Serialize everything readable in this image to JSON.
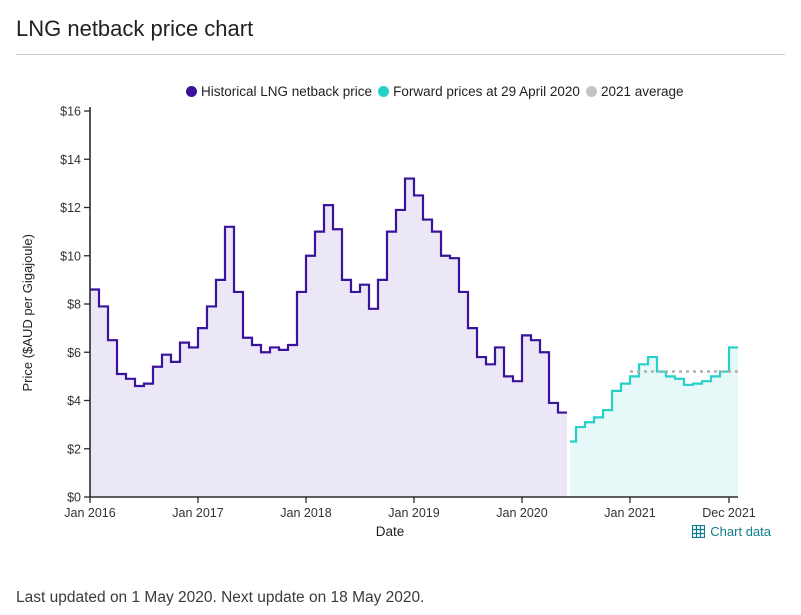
{
  "header": {
    "title": "LNG netback price chart"
  },
  "legend": [
    {
      "label": "Historical LNG netback price",
      "color": "#3b129b"
    },
    {
      "label": "Forward prices at 29 April 2020",
      "color": "#25d0c6"
    },
    {
      "label": "2021 average",
      "color": "#c4c4c4"
    }
  ],
  "chart_data": {
    "type": "line",
    "step": true,
    "title": "LNG netback price chart",
    "xlabel": "Date",
    "ylabel": "Price ($AUD per Gigajoule)",
    "ylim": [
      0,
      16
    ],
    "x_domain_months": [
      0,
      72
    ],
    "x_unit": "months since Jan 2016, monthly step values",
    "grid": false,
    "legend_position": "top",
    "y_ticks": [
      {
        "value": 0,
        "label": "$0"
      },
      {
        "value": 2,
        "label": "$2"
      },
      {
        "value": 4,
        "label": "$4"
      },
      {
        "value": 6,
        "label": "$6"
      },
      {
        "value": 8,
        "label": "$8"
      },
      {
        "value": 10,
        "label": "$10"
      },
      {
        "value": 12,
        "label": "$12"
      },
      {
        "value": 14,
        "label": "$14"
      },
      {
        "value": 16,
        "label": "$16"
      }
    ],
    "x_ticks": [
      {
        "month": 0,
        "label": "Jan 2016"
      },
      {
        "month": 12,
        "label": "Jan 2017"
      },
      {
        "month": 24,
        "label": "Jan 2018"
      },
      {
        "month": 36,
        "label": "Jan 2019"
      },
      {
        "month": 48,
        "label": "Jan 2020"
      },
      {
        "month": 60,
        "label": "Jan 2021"
      },
      {
        "month": 71,
        "label": "Dec 2021"
      }
    ],
    "series": [
      {
        "name": "Historical LNG netback price",
        "start_month": 0,
        "color": "#3b129b",
        "fill": "#ece7f6",
        "values": [
          8.6,
          7.9,
          6.5,
          5.1,
          4.9,
          4.6,
          4.7,
          5.4,
          5.9,
          5.6,
          6.4,
          6.2,
          7.0,
          7.9,
          9.0,
          11.2,
          8.5,
          6.6,
          6.3,
          6.0,
          6.2,
          6.1,
          6.3,
          8.5,
          10.0,
          11.0,
          12.1,
          11.1,
          9.0,
          8.5,
          8.8,
          7.8,
          9.0,
          11.0,
          11.9,
          13.2,
          12.5,
          11.5,
          11.0,
          10.0,
          9.9,
          8.5,
          7.0,
          5.8,
          5.5,
          6.2,
          5.0,
          4.8,
          6.7,
          6.5,
          6.0,
          3.9,
          3.5
        ]
      },
      {
        "name": "Forward prices at 29 April 2020",
        "start_month": 53,
        "color": "#25d0c6",
        "fill": "#e6f9f8",
        "values": [
          2.3,
          2.9,
          3.1,
          3.3,
          3.6,
          4.4,
          4.7,
          5.0,
          5.5,
          5.8,
          5.2,
          5.0,
          4.9,
          4.65,
          4.7,
          4.8,
          5.0,
          5.2,
          6.2
        ]
      }
    ],
    "average_line": {
      "name": "2021 average",
      "value": 5.2,
      "from_month": 60,
      "to_month": 72,
      "color": "#b0b0b0"
    }
  },
  "chart_footer": {
    "chart_data_link": "Chart data"
  },
  "footer": {
    "text": "Last updated on 1 May 2020. Next update on 18 May 2020."
  }
}
